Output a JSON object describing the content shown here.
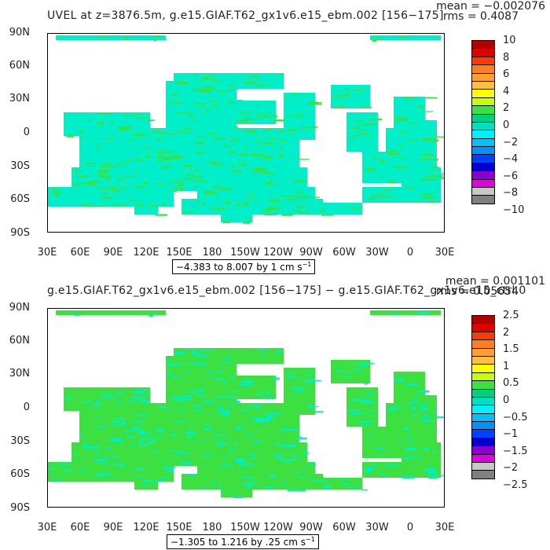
{
  "panels": [
    {
      "title": "UVEL at z=3876.5m, g.e15.GIAF.T62_gx1v6.e15_ebm.002 [156−175]",
      "mean": "mean = −0.002076",
      "rms": "rms = 0.4087",
      "range_label": "−4.383 to 8.007 by 1 cm s",
      "range_unit_exp": "−1",
      "colorbar": {
        "labels": [
          "10",
          "8",
          "6",
          "4",
          "2",
          "0",
          "−2",
          "−4",
          "−6",
          "−8",
          "−10"
        ],
        "colors": [
          "#b00000",
          "#e00000",
          "#ff3a00",
          "#ff7f1a",
          "#ff9f30",
          "#ffc040",
          "#ffff00",
          "#c8ff00",
          "#3ce040",
          "#00d080",
          "#00e0c0",
          "#00f0ff",
          "#00c0ff",
          "#0090ff",
          "#0040ff",
          "#0000d0",
          "#8a00d0",
          "#e000e0",
          "#c8c8c8",
          "#808080"
        ]
      }
    },
    {
      "title": "g.e15.GIAF.T62_gx1v6.e15_ebm.002 [156−175] − g.e15.GIAF.T62_gx1v6.e15_ctrl.0",
      "mean": "mean = 0.001101",
      "rms": "rms = 0.05654",
      "range_label": "−1.305 to 1.216 by .25 cm s",
      "range_unit_exp": "−1",
      "colorbar": {
        "labels": [
          "2.5",
          "2",
          "1.5",
          "1",
          "0.5",
          "0",
          "−0.5",
          "−1",
          "−1.5",
          "−2",
          "−2.5"
        ],
        "colors": [
          "#b00000",
          "#e00000",
          "#ff3a00",
          "#ff7f1a",
          "#ff9f30",
          "#ffc040",
          "#ffff00",
          "#c8ff00",
          "#3ce040",
          "#00d080",
          "#00e0c0",
          "#00f0ff",
          "#00c0ff",
          "#0090ff",
          "#0040ff",
          "#0000d0",
          "#8a00d0",
          "#e000e0",
          "#c8c8c8",
          "#808080"
        ]
      }
    }
  ],
  "y_axis_labels": [
    "90N",
    "60N",
    "30N",
    "0",
    "30S",
    "60S",
    "90S"
  ],
  "x_axis_labels": [
    "30E",
    "60E",
    "90E",
    "120E",
    "150E",
    "180",
    "150W",
    "120W",
    "90W",
    "60W",
    "30W",
    "0",
    "30E"
  ],
  "map_colors": {
    "primary": "#00eec8",
    "secondary": "#3ce040",
    "ocean": "#ffffff"
  }
}
